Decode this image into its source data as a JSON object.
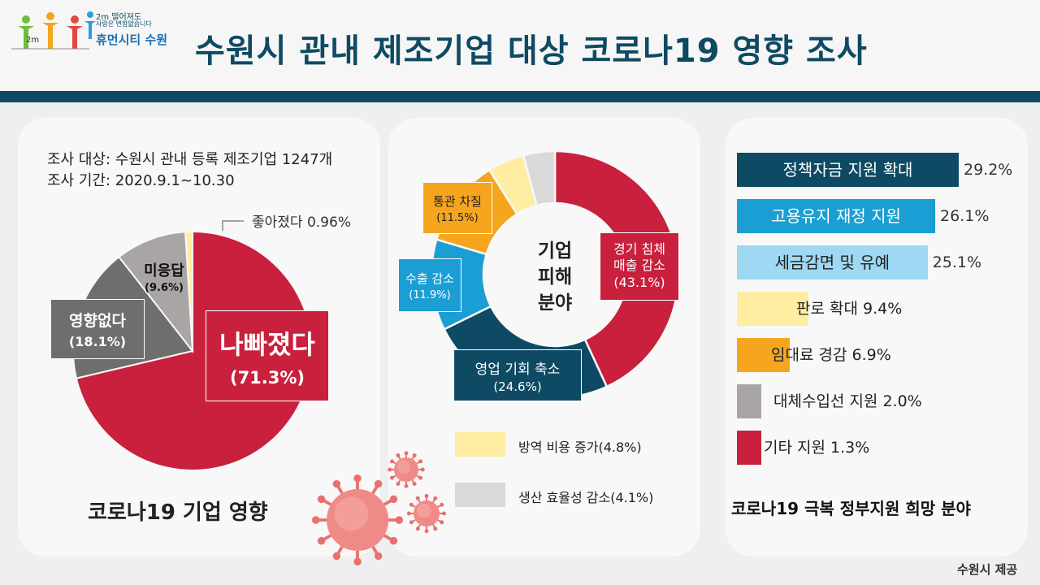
{
  "header": {
    "title": "수원시 관내 제조기업 대상 코로나19 영향 조사",
    "logo_line1": "2m 떨어져도",
    "logo_line2": "사랑은 변함없습니다",
    "logo_brand": "휴먼시티 수원",
    "logo_badge": "2m"
  },
  "colors": {
    "navy": "#0e4a63",
    "red": "#c8203d",
    "gray_dark": "#6e6e6e",
    "gray_light": "#a9a5a5",
    "yellow": "#ffeea2",
    "orange": "#f6a51f",
    "blue": "#1b9ed3",
    "light_blue": "#9ed8f2"
  },
  "survey": {
    "target": "조사 대상: 수원시 관내 등록 제조기업 1247개",
    "period": "조사 기간: 2020.9.1~10.30"
  },
  "chart_data": [
    {
      "type": "pie",
      "title": "코로나19 기업 영향",
      "slices": [
        {
          "label": "나빠졌다",
          "value": 71.3,
          "value_label": "(71.3%)",
          "color": "#c8203d"
        },
        {
          "label": "영향없다",
          "value": 18.1,
          "value_label": "(18.1%)",
          "color": "#6e6e6e"
        },
        {
          "label": "미응답",
          "value": 9.6,
          "value_label": "(9.6%)",
          "color": "#a9a5a5"
        },
        {
          "label": "좋아졌다",
          "value": 0.96,
          "value_label": "좋아졌다 0.96%",
          "color": "#ffeea2"
        }
      ]
    },
    {
      "type": "pie",
      "title": "",
      "center_label": [
        "기업",
        "피해",
        "분야"
      ],
      "slices": [
        {
          "label": "경기 침체 매출 감소",
          "label_lines": [
            "경기 침체",
            "매출 감소"
          ],
          "value": 43.1,
          "value_label": "(43.1%)",
          "color": "#c8203d"
        },
        {
          "label": "영업 기회 축소",
          "label_lines": [
            "영업 기회 축소"
          ],
          "value": 24.6,
          "value_label": "(24.6%)",
          "color": "#0e4a63"
        },
        {
          "label": "수출 감소",
          "label_lines": [
            "수출 감소"
          ],
          "value": 11.9,
          "value_label": "(11.9%)",
          "color": "#1b9ed3"
        },
        {
          "label": "통관 차질",
          "label_lines": [
            "통관 차질"
          ],
          "value": 11.5,
          "value_label": "(11.5%)",
          "color": "#f6a51f"
        },
        {
          "label": "방역 비용 증가",
          "label_lines": [],
          "value": 4.8,
          "value_label": "방역 비용 증가(4.8%)",
          "color": "#ffeea2"
        },
        {
          "label": "생산 효율성 감소",
          "label_lines": [],
          "value": 4.1,
          "value_label": "생산 효율성 감소(4.1%)",
          "color": "#d9d9d9"
        }
      ]
    },
    {
      "type": "bar",
      "orientation": "horizontal",
      "title": "코로나19 극복 정부지원 희망 분야",
      "categories": [
        "정책자금 지원 확대",
        "고용유지 재정 지원",
        "세금감면 및 유예",
        "판로 확대",
        "임대료 경감",
        "대체수입선 지원",
        "기타 지원"
      ],
      "values": [
        29.2,
        26.1,
        25.1,
        9.4,
        6.9,
        2.0,
        1.3
      ],
      "value_labels": [
        "29.2%",
        "26.1%",
        "25.1%",
        "9.4%",
        "6.9%",
        "2.0%",
        "1.3%"
      ],
      "colors": [
        "#0e4a63",
        "#1b9ed3",
        "#9ed8f2",
        "#ffeea2",
        "#f6a51f",
        "#a9a5a5",
        "#c8203d"
      ],
      "xlim": [
        0,
        29.2
      ]
    }
  ],
  "footer": {
    "credit": "수원시 제공"
  }
}
